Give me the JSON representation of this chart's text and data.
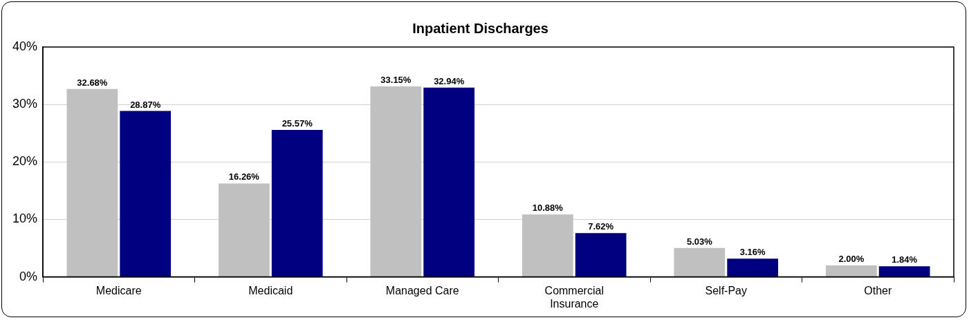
{
  "chart_data": {
    "type": "bar",
    "title": "Inpatient Discharges",
    "categories": [
      "Medicare",
      "Medicaid",
      "Managed Care",
      "Commercial Insurance",
      "Self-Pay",
      "Other"
    ],
    "series": [
      {
        "color": "#c0c0c0",
        "values": [
          32.68,
          16.26,
          33.15,
          10.88,
          5.03,
          2.0
        ],
        "value_labels": [
          "32.68%",
          "16.26%",
          "33.15%",
          "10.88%",
          "5.03%",
          "2.00%"
        ]
      },
      {
        "color": "#000080",
        "values": [
          28.87,
          25.57,
          32.94,
          7.62,
          3.16,
          1.84
        ],
        "value_labels": [
          "28.87%",
          "25.57%",
          "32.94%",
          "7.62%",
          "3.16%",
          "1.84%"
        ]
      }
    ],
    "ylim": [
      0,
      40
    ],
    "yticks": [
      {
        "value": 0,
        "label": "0%"
      },
      {
        "value": 10,
        "label": "10%"
      },
      {
        "value": 20,
        "label": "20%"
      },
      {
        "value": 30,
        "label": "30%"
      },
      {
        "value": 40,
        "label": "40%"
      }
    ],
    "grid": "y",
    "legend": false
  }
}
